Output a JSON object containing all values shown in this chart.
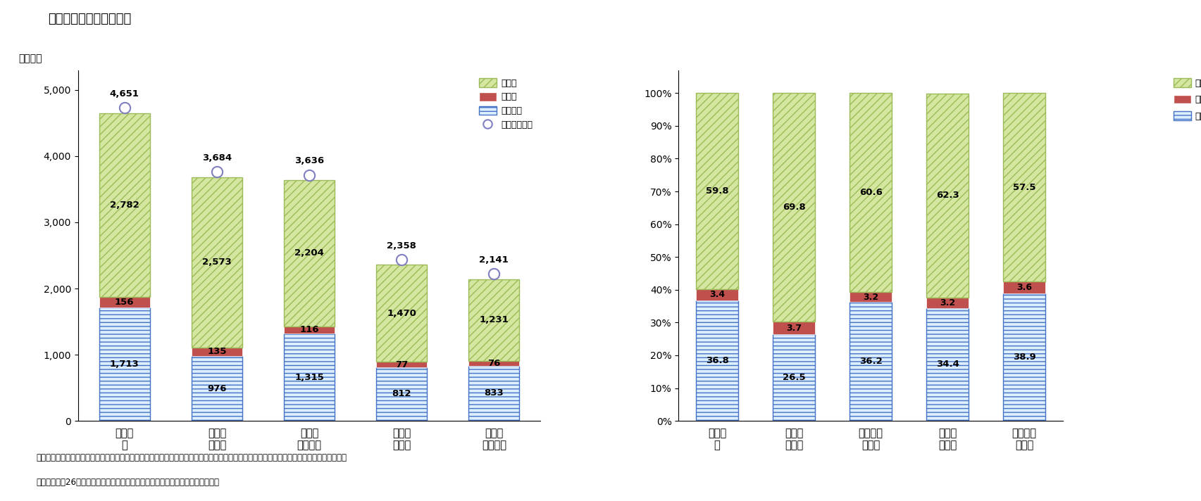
{
  "title": "図表１　取得資金の構成",
  "ylabel_left": "（万円）",
  "categories_left": [
    "注文住\n宅",
    "分譲一\n戸建て",
    "分譲マ\nンション",
    "中古一\n戸建て",
    "中古マ\nンション"
  ],
  "categories_right": [
    "注文住\n宅",
    "分譲一\n戸建て",
    "分譲マン\nション",
    "中古一\n戸建て",
    "中古マン\nション"
  ],
  "jiko_shikin": [
    1713,
    976,
    1315,
    812,
    833
  ],
  "zoyo_gaku": [
    156,
    135,
    116,
    77,
    76
  ],
  "kariire_kin": [
    2782,
    2573,
    2204,
    1470,
    1231
  ],
  "total": [
    4651,
    3684,
    3636,
    2358,
    2141
  ],
  "pct_jiko": [
    36.8,
    26.5,
    36.2,
    34.4,
    38.9
  ],
  "pct_zoyo": [
    3.4,
    3.7,
    3.2,
    3.2,
    3.6
  ],
  "pct_kariire": [
    59.8,
    69.8,
    60.6,
    62.3,
    57.5
  ],
  "color_jiko_face": "#DDEEFF",
  "color_jiko_edge": "#4472C4",
  "color_zoyo": "#C0504D",
  "color_kariire_face": "#D4E6A0",
  "color_kariire_edge": "#9BBB59",
  "color_circle": "#8080C0",
  "legend_labels": [
    "借入金",
    "贈与額",
    "自己資金",
    "購入資金総額"
  ],
  "note1": "（注）分譲マンション、中古マンションは、それぞれ基の選択肢、分譲集合住宅、中古集合住宅を読み替えている。調査地域は三大都市圈。",
  "note2": "（資料）平成26年度住宅市場動向調査（国土交通省）を基に筆者作成。以下同じ",
  "ylim_left": [
    0,
    5300
  ],
  "yticks_left": [
    0,
    1000,
    2000,
    3000,
    4000,
    5000
  ]
}
